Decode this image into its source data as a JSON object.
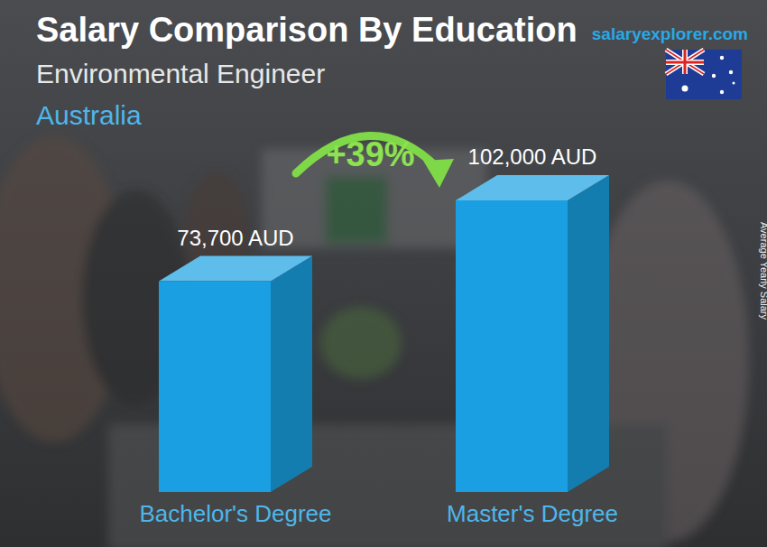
{
  "chart_data": {
    "type": "bar",
    "title": "Salary Comparison By Education",
    "subtitle": "Environmental Engineer",
    "annotations": {
      "country": "Australia",
      "source": "salaryexplorer.com",
      "change": "+39%"
    },
    "y_label": "Average Yearly Salary",
    "categories": [
      "Bachelor's Degree",
      "Master's Degree"
    ],
    "values": [
      73700,
      102000
    ],
    "value_labels": [
      "73,700 AUD",
      "102,000 AUD"
    ],
    "color": "#1aa0e2",
    "data_labels": true,
    "tick_labels": false
  }
}
